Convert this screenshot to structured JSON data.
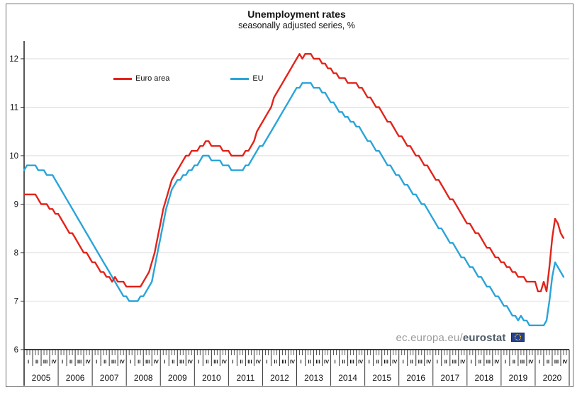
{
  "figure": {
    "title": "Unemployment rates",
    "subtitle": "seasonally adjusted series, %",
    "watermark": {
      "prefix": "ec.europa.eu/",
      "brand": "eurostat"
    }
  },
  "chart_data": {
    "type": "line",
    "title": "Unemployment rates",
    "subtitle": "seasonally adjusted series, %",
    "frequency": "monthly",
    "x_start": "2005-01",
    "x_end": "2020-11",
    "ylim": [
      6,
      12
    ],
    "yticks": [
      6,
      7,
      8,
      9,
      10,
      11,
      12
    ],
    "grid": "horizontal",
    "legend_position": "inside-top-left",
    "years": [
      2005,
      2006,
      2007,
      2008,
      2009,
      2010,
      2011,
      2012,
      2013,
      2014,
      2015,
      2016,
      2017,
      2018,
      2019,
      2020
    ],
    "quarter_labels": [
      "I",
      "II",
      "III",
      "IV"
    ],
    "series": [
      {
        "name": "Euro area",
        "color": "#e2231a",
        "values": [
          9.2,
          9.2,
          9.2,
          9.2,
          9.2,
          9.1,
          9.0,
          9.0,
          9.0,
          8.9,
          8.9,
          8.8,
          8.8,
          8.7,
          8.6,
          8.5,
          8.4,
          8.4,
          8.3,
          8.2,
          8.1,
          8.0,
          8.0,
          7.9,
          7.8,
          7.8,
          7.7,
          7.6,
          7.6,
          7.5,
          7.5,
          7.4,
          7.5,
          7.4,
          7.4,
          7.4,
          7.3,
          7.3,
          7.3,
          7.3,
          7.3,
          7.3,
          7.4,
          7.5,
          7.6,
          7.8,
          8.0,
          8.3,
          8.6,
          8.9,
          9.1,
          9.3,
          9.5,
          9.6,
          9.7,
          9.8,
          9.9,
          10.0,
          10.0,
          10.1,
          10.1,
          10.1,
          10.2,
          10.2,
          10.3,
          10.3,
          10.2,
          10.2,
          10.2,
          10.2,
          10.1,
          10.1,
          10.1,
          10.0,
          10.0,
          10.0,
          10.0,
          10.0,
          10.1,
          10.1,
          10.2,
          10.3,
          10.5,
          10.6,
          10.7,
          10.8,
          10.9,
          11.0,
          11.2,
          11.3,
          11.4,
          11.5,
          11.6,
          11.7,
          11.8,
          11.9,
          12.0,
          12.1,
          12.0,
          12.1,
          12.1,
          12.1,
          12.0,
          12.0,
          12.0,
          11.9,
          11.9,
          11.8,
          11.8,
          11.7,
          11.7,
          11.6,
          11.6,
          11.6,
          11.5,
          11.5,
          11.5,
          11.5,
          11.4,
          11.4,
          11.3,
          11.2,
          11.2,
          11.1,
          11.0,
          11.0,
          10.9,
          10.8,
          10.7,
          10.7,
          10.6,
          10.5,
          10.4,
          10.4,
          10.3,
          10.2,
          10.2,
          10.1,
          10.0,
          10.0,
          9.9,
          9.8,
          9.8,
          9.7,
          9.6,
          9.5,
          9.5,
          9.4,
          9.3,
          9.2,
          9.1,
          9.1,
          9.0,
          8.9,
          8.8,
          8.7,
          8.6,
          8.6,
          8.5,
          8.4,
          8.4,
          8.3,
          8.2,
          8.1,
          8.1,
          8.0,
          7.9,
          7.9,
          7.8,
          7.8,
          7.7,
          7.7,
          7.6,
          7.6,
          7.5,
          7.5,
          7.5,
          7.4,
          7.4,
          7.4,
          7.4,
          7.2,
          7.2,
          7.4,
          7.2,
          7.7,
          8.3,
          8.7,
          8.6,
          8.4,
          8.3
        ]
      },
      {
        "name": "EU",
        "color": "#29a4d9",
        "values": [
          9.7,
          9.8,
          9.8,
          9.8,
          9.8,
          9.7,
          9.7,
          9.7,
          9.6,
          9.6,
          9.6,
          9.5,
          9.4,
          9.3,
          9.2,
          9.1,
          9.0,
          8.9,
          8.8,
          8.7,
          8.6,
          8.5,
          8.4,
          8.3,
          8.2,
          8.1,
          8.0,
          7.9,
          7.8,
          7.7,
          7.6,
          7.5,
          7.4,
          7.3,
          7.2,
          7.1,
          7.1,
          7.0,
          7.0,
          7.0,
          7.0,
          7.1,
          7.1,
          7.2,
          7.3,
          7.4,
          7.7,
          8.0,
          8.3,
          8.6,
          8.9,
          9.1,
          9.3,
          9.4,
          9.5,
          9.5,
          9.6,
          9.6,
          9.7,
          9.7,
          9.8,
          9.8,
          9.9,
          10.0,
          10.0,
          10.0,
          9.9,
          9.9,
          9.9,
          9.9,
          9.8,
          9.8,
          9.8,
          9.7,
          9.7,
          9.7,
          9.7,
          9.7,
          9.8,
          9.8,
          9.9,
          10.0,
          10.1,
          10.2,
          10.2,
          10.3,
          10.4,
          10.5,
          10.6,
          10.7,
          10.8,
          10.9,
          11.0,
          11.1,
          11.2,
          11.3,
          11.4,
          11.4,
          11.5,
          11.5,
          11.5,
          11.5,
          11.4,
          11.4,
          11.4,
          11.3,
          11.3,
          11.2,
          11.1,
          11.1,
          11.0,
          10.9,
          10.9,
          10.8,
          10.8,
          10.7,
          10.7,
          10.6,
          10.6,
          10.5,
          10.4,
          10.3,
          10.3,
          10.2,
          10.1,
          10.1,
          10.0,
          9.9,
          9.8,
          9.8,
          9.7,
          9.6,
          9.6,
          9.5,
          9.4,
          9.4,
          9.3,
          9.2,
          9.2,
          9.1,
          9.0,
          9.0,
          8.9,
          8.8,
          8.7,
          8.6,
          8.5,
          8.5,
          8.4,
          8.3,
          8.2,
          8.2,
          8.1,
          8.0,
          7.9,
          7.9,
          7.8,
          7.7,
          7.7,
          7.6,
          7.5,
          7.5,
          7.4,
          7.3,
          7.3,
          7.2,
          7.1,
          7.1,
          7.0,
          6.9,
          6.9,
          6.8,
          6.7,
          6.7,
          6.6,
          6.7,
          6.6,
          6.6,
          6.5,
          6.5,
          6.5,
          6.5,
          6.5,
          6.5,
          6.6,
          7.0,
          7.5,
          7.8,
          7.7,
          7.6,
          7.5
        ]
      }
    ]
  }
}
